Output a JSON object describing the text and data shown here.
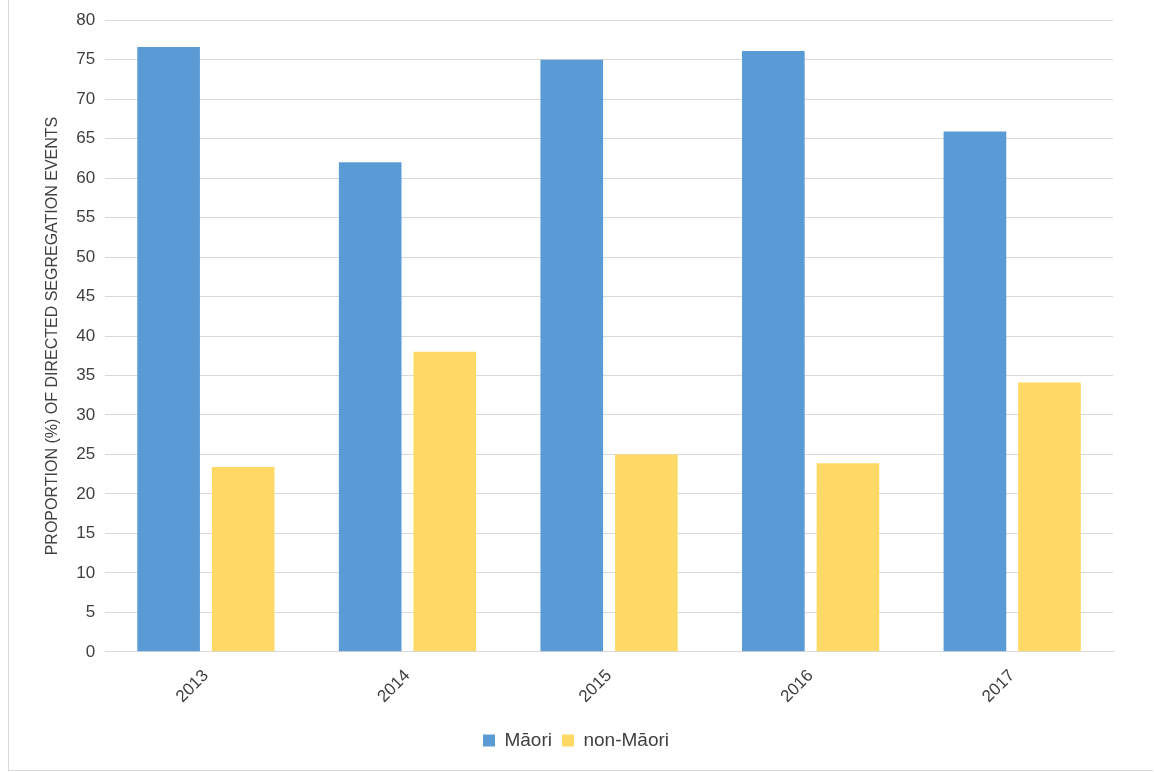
{
  "chart_data": {
    "type": "bar",
    "ylabel": "PROPORTION (%) OF DIRECTED SEGREGATION EVENTS",
    "categories": [
      "2013",
      "2014",
      "2015",
      "2016",
      "2017"
    ],
    "series": [
      {
        "name": "Māori",
        "color": "#5b9bd5",
        "values": [
          76.6,
          62,
          75,
          76.1,
          65.9
        ]
      },
      {
        "name": "non-Māori",
        "color": "#ffd966",
        "values": [
          23.4,
          38,
          25,
          23.9,
          34.1
        ]
      }
    ],
    "ylim": [
      0,
      80
    ],
    "yticks": [
      0,
      5,
      10,
      15,
      20,
      25,
      30,
      35,
      40,
      45,
      50,
      55,
      60,
      65,
      70,
      75,
      80
    ],
    "grid": "y",
    "legend": "bottom"
  }
}
